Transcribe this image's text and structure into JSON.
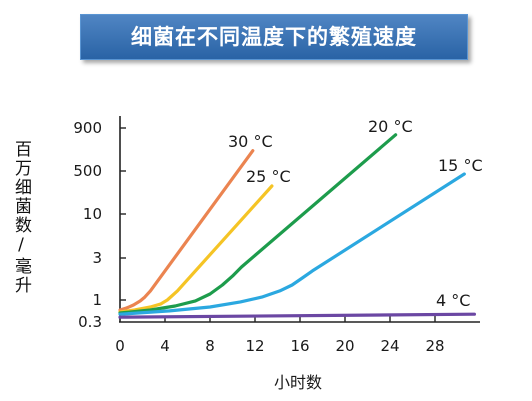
{
  "colors": {
    "banner": "#2E6EB8",
    "banner_text": "#FFFFFF",
    "axis": "#222222"
  },
  "chart_data": {
    "type": "line",
    "title": "细菌在不同温度下的繁殖速度",
    "xlabel": "小时数",
    "ylabel": "百万细菌数/毫升",
    "xlim": [
      0,
      32
    ],
    "ylim": [
      0.3,
      900
    ],
    "xticks": [
      0,
      4,
      8,
      12,
      16,
      20,
      24,
      28
    ],
    "yticks": [
      0.3,
      1,
      3,
      10,
      500,
      900
    ],
    "grid": false,
    "series": [
      {
        "name": "30 °C",
        "color": "#EB8450",
        "points": [
          [
            0,
            0.58
          ],
          [
            0.6,
            0.65
          ],
          [
            1.2,
            0.76
          ],
          [
            1.8,
            0.95
          ],
          [
            2.2,
            1.08
          ],
          [
            2.7,
            1.27
          ],
          [
            11.8,
            660
          ]
        ]
      },
      {
        "name": "25 °C",
        "color": "#F5C425",
        "points": [
          [
            0,
            0.52
          ],
          [
            1.3,
            0.58
          ],
          [
            2.7,
            0.68
          ],
          [
            3.6,
            0.8
          ],
          [
            4.2,
            1
          ],
          [
            4.6,
            1.11
          ],
          [
            5.1,
            1.27
          ],
          [
            13.5,
            128
          ]
        ]
      },
      {
        "name": "20 °C",
        "color": "#1D9C4C",
        "points": [
          [
            0,
            0.49
          ],
          [
            2.7,
            0.58
          ],
          [
            4.9,
            0.72
          ],
          [
            6.7,
            0.95
          ],
          [
            8,
            1.17
          ],
          [
            9.1,
            1.48
          ],
          [
            10,
            1.87
          ],
          [
            10.8,
            2.37
          ],
          [
            24.5,
            820
          ]
        ]
      },
      {
        "name": "15 °C",
        "color": "#2BA8E0",
        "points": [
          [
            0,
            0.46
          ],
          [
            4.4,
            0.55
          ],
          [
            8,
            0.68
          ],
          [
            10.7,
            0.9
          ],
          [
            12.6,
            1.08
          ],
          [
            14.2,
            1.27
          ],
          [
            15.3,
            1.48
          ],
          [
            16.2,
            1.78
          ],
          [
            17.1,
            2.14
          ],
          [
            30.6,
            380
          ]
        ]
      },
      {
        "name": "4 °C",
        "color": "#6B47A3",
        "points": [
          [
            0,
            0.39
          ],
          [
            31.5,
            0.46
          ]
        ]
      }
    ]
  }
}
